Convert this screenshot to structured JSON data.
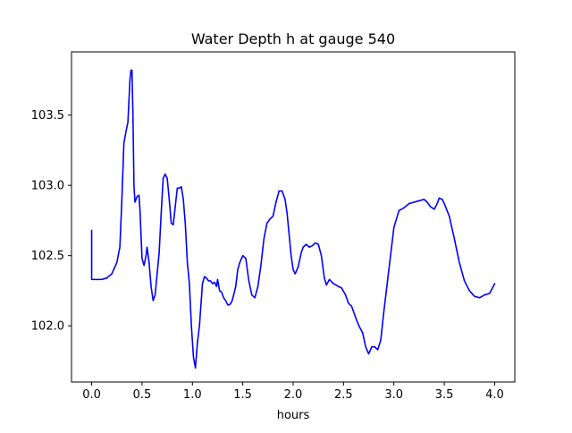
{
  "chart_data": {
    "type": "line",
    "title": "Water Depth h at gauge 540",
    "xlabel": "hours",
    "ylabel": "",
    "xlim": [
      -0.2,
      4.2
    ],
    "ylim": [
      101.6,
      103.95
    ],
    "xticks": [
      0.0,
      0.5,
      1.0,
      1.5,
      2.0,
      2.5,
      3.0,
      3.5,
      4.0
    ],
    "xtick_labels": [
      "0.0",
      "0.5",
      "1.0",
      "1.5",
      "2.0",
      "2.5",
      "3.0",
      "3.5",
      "4.0"
    ],
    "yticks": [
      102.0,
      102.5,
      103.0,
      103.5
    ],
    "ytick_labels": [
      "102.0",
      "102.5",
      "103.0",
      "103.5"
    ],
    "grid": false,
    "legend": "none",
    "series": [
      {
        "color": "#0000ff",
        "x": [
          0.0,
          0.0,
          0.05,
          0.1,
          0.15,
          0.2,
          0.25,
          0.28,
          0.3,
          0.32,
          0.34,
          0.36,
          0.38,
          0.39,
          0.4,
          0.41,
          0.42,
          0.43,
          0.45,
          0.47,
          0.48,
          0.5,
          0.52,
          0.54,
          0.55,
          0.57,
          0.59,
          0.61,
          0.63,
          0.65,
          0.67,
          0.69,
          0.71,
          0.73,
          0.75,
          0.77,
          0.79,
          0.81,
          0.83,
          0.85,
          0.87,
          0.89,
          0.91,
          0.93,
          0.95,
          0.97,
          0.99,
          1.01,
          1.03,
          1.05,
          1.07,
          1.09,
          1.1,
          1.12,
          1.14,
          1.16,
          1.18,
          1.2,
          1.22,
          1.24,
          1.25,
          1.27,
          1.29,
          1.31,
          1.33,
          1.35,
          1.37,
          1.39,
          1.41,
          1.43,
          1.45,
          1.47,
          1.5,
          1.53,
          1.56,
          1.59,
          1.62,
          1.65,
          1.68,
          1.71,
          1.74,
          1.77,
          1.8,
          1.83,
          1.86,
          1.89,
          1.92,
          1.94,
          1.96,
          1.98,
          2.0,
          2.02,
          2.05,
          2.08,
          2.1,
          2.13,
          2.16,
          2.19,
          2.22,
          2.25,
          2.28,
          2.31,
          2.33,
          2.36,
          2.4,
          2.45,
          2.48,
          2.52,
          2.55,
          2.58,
          2.6,
          2.63,
          2.66,
          2.69,
          2.72,
          2.75,
          2.78,
          2.81,
          2.84,
          2.87,
          2.9,
          2.95,
          3.0,
          3.05,
          3.1,
          3.15,
          3.2,
          3.25,
          3.3,
          3.33,
          3.36,
          3.4,
          3.43,
          3.45,
          3.48,
          3.5,
          3.55,
          3.6,
          3.65,
          3.7,
          3.75,
          3.8,
          3.85,
          3.9,
          3.95,
          4.0
        ],
        "y": [
          102.68,
          102.33,
          102.33,
          102.33,
          102.34,
          102.37,
          102.45,
          102.56,
          102.9,
          103.3,
          103.38,
          103.45,
          103.75,
          103.82,
          103.82,
          103.5,
          103.0,
          102.88,
          102.92,
          102.93,
          102.82,
          102.48,
          102.43,
          102.5,
          102.56,
          102.45,
          102.28,
          102.18,
          102.22,
          102.37,
          102.52,
          102.8,
          103.05,
          103.08,
          103.05,
          102.9,
          102.73,
          102.72,
          102.85,
          102.98,
          102.98,
          102.99,
          102.9,
          102.72,
          102.45,
          102.3,
          102.0,
          101.78,
          101.7,
          101.88,
          102.0,
          102.2,
          102.3,
          102.35,
          102.34,
          102.32,
          102.32,
          102.3,
          102.31,
          102.28,
          102.33,
          102.25,
          102.24,
          102.2,
          102.18,
          102.15,
          102.15,
          102.17,
          102.22,
          102.28,
          102.4,
          102.45,
          102.5,
          102.48,
          102.32,
          102.22,
          102.2,
          102.28,
          102.43,
          102.62,
          102.73,
          102.76,
          102.78,
          102.88,
          102.96,
          102.96,
          102.9,
          102.8,
          102.65,
          102.5,
          102.4,
          102.37,
          102.42,
          102.52,
          102.56,
          102.58,
          102.56,
          102.57,
          102.59,
          102.58,
          102.5,
          102.34,
          102.29,
          102.33,
          102.3,
          102.28,
          102.27,
          102.22,
          102.16,
          102.14,
          102.1,
          102.04,
          101.99,
          101.95,
          101.85,
          101.8,
          101.85,
          101.85,
          101.83,
          101.9,
          102.1,
          102.4,
          102.7,
          102.82,
          102.84,
          102.87,
          102.88,
          102.89,
          102.9,
          102.88,
          102.85,
          102.83,
          102.87,
          102.91,
          102.9,
          102.87,
          102.78,
          102.62,
          102.45,
          102.32,
          102.25,
          102.21,
          102.2,
          102.22,
          102.23,
          102.3
        ]
      }
    ]
  }
}
